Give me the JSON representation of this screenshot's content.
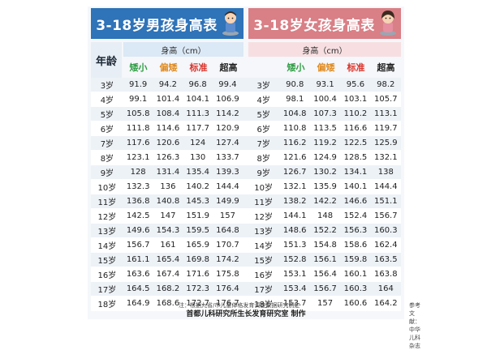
{
  "boy_title": "3-18岁男孩身高表",
  "girl_title": "3-18岁女孩身高表",
  "age_header": "年龄",
  "unit_label": "身高（cm）",
  "categories": [
    {
      "label": "矮小",
      "color": "#2f9e44"
    },
    {
      "label": "偏矮",
      "color": "#e08a1e"
    },
    {
      "label": "标准",
      "color": "#d9342b"
    },
    {
      "label": "超高",
      "color": "#222222"
    }
  ],
  "rows": [
    {
      "age": "3岁",
      "boy": [
        "91.9",
        "94.2",
        "96.8",
        "99.4"
      ],
      "girl": [
        "90.8",
        "93.1",
        "95.6",
        "98.2"
      ]
    },
    {
      "age": "4岁",
      "boy": [
        "99.1",
        "101.4",
        "104.1",
        "106.9"
      ],
      "girl": [
        "98.1",
        "100.4",
        "103.1",
        "105.7"
      ]
    },
    {
      "age": "5岁",
      "boy": [
        "105.8",
        "108.4",
        "111.3",
        "114.2"
      ],
      "girl": [
        "104.8",
        "107.3",
        "110.2",
        "113.1"
      ]
    },
    {
      "age": "6岁",
      "boy": [
        "111.8",
        "114.6",
        "117.7",
        "120.9"
      ],
      "girl": [
        "110.8",
        "113.5",
        "116.6",
        "119.7"
      ]
    },
    {
      "age": "7岁",
      "boy": [
        "117.6",
        "120.6",
        "124",
        "127.4"
      ],
      "girl": [
        "116.2",
        "119.2",
        "122.5",
        "125.9"
      ]
    },
    {
      "age": "8岁",
      "boy": [
        "123.1",
        "126.3",
        "130",
        "133.7"
      ],
      "girl": [
        "121.6",
        "124.9",
        "128.5",
        "132.1"
      ]
    },
    {
      "age": "9岁",
      "boy": [
        "128",
        "131.4",
        "135.4",
        "139.3"
      ],
      "girl": [
        "126.7",
        "130.2",
        "134.1",
        "138"
      ]
    },
    {
      "age": "10岁",
      "boy": [
        "132.3",
        "136",
        "140.2",
        "144.4"
      ],
      "girl": [
        "132.1",
        "135.9",
        "140.1",
        "144.4"
      ]
    },
    {
      "age": "11岁",
      "boy": [
        "136.8",
        "140.8",
        "145.3",
        "149.9"
      ],
      "girl": [
        "138.2",
        "142.2",
        "146.6",
        "151.1"
      ]
    },
    {
      "age": "12岁",
      "boy": [
        "142.5",
        "147",
        "151.9",
        "157"
      ],
      "girl": [
        "144.1",
        "148",
        "152.4",
        "156.7"
      ]
    },
    {
      "age": "13岁",
      "boy": [
        "149.6",
        "154.3",
        "159.5",
        "164.8"
      ],
      "girl": [
        "148.6",
        "152.2",
        "156.3",
        "160.3"
      ]
    },
    {
      "age": "14岁",
      "boy": [
        "156.7",
        "161",
        "165.9",
        "170.7"
      ],
      "girl": [
        "151.3",
        "154.8",
        "158.6",
        "162.4"
      ]
    },
    {
      "age": "15岁",
      "boy": [
        "161.1",
        "165.4",
        "169.8",
        "174.2"
      ],
      "girl": [
        "152.8",
        "156.1",
        "159.8",
        "163.5"
      ]
    },
    {
      "age": "16岁",
      "boy": [
        "163.6",
        "167.4",
        "171.6",
        "175.8"
      ],
      "girl": [
        "153.1",
        "156.4",
        "160.1",
        "163.8"
      ]
    },
    {
      "age": "17岁",
      "boy": [
        "164.5",
        "168.2",
        "172.3",
        "176.4"
      ],
      "girl": [
        "153.4",
        "156.7",
        "160.3",
        "164"
      ]
    },
    {
      "age": "18岁",
      "boy": [
        "164.9",
        "168.6",
        "172.7",
        "176.7"
      ],
      "girl": [
        "153.7",
        "157",
        "160.6",
        "164.2"
      ]
    }
  ],
  "note_left": "注：根据九省/市儿童体格发育调查数据研究制定",
  "note_right": "参考文献：中华儿科杂志",
  "footer": "首都儿科研究所生长发育研究室 制作",
  "colors": {
    "boy_header": "#2f73b8",
    "girl_header": "#d97f86"
  }
}
